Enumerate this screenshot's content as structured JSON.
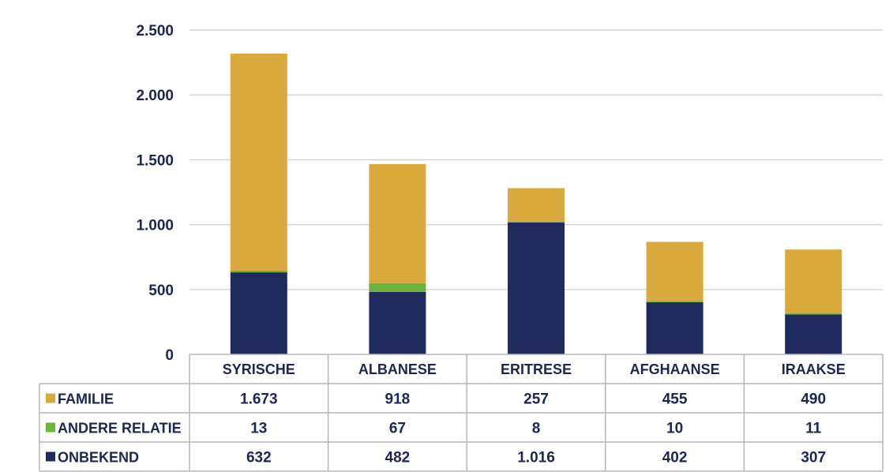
{
  "chart_data": {
    "type": "bar",
    "stacked": true,
    "categories": [
      "SYRISCHE",
      "ALBANESE",
      "ERITRESE",
      "AFGHAANSE",
      "IRAAKSE"
    ],
    "series": [
      {
        "name": "ONBEKEND",
        "values": [
          632,
          482,
          1016,
          402,
          307
        ],
        "labels": [
          "632",
          "482",
          "1.016",
          "402",
          "307"
        ],
        "color": "#1f2a5e"
      },
      {
        "name": "ANDERE RELATIE",
        "values": [
          13,
          67,
          8,
          10,
          11
        ],
        "labels": [
          "13",
          "67",
          "8",
          "10",
          "11"
        ],
        "color": "#6cb33e"
      },
      {
        "name": "FAMILIE",
        "values": [
          1673,
          918,
          257,
          455,
          490
        ],
        "labels": [
          "1.673",
          "918",
          "257",
          "455",
          "490"
        ],
        "color": "#d9a93c"
      }
    ],
    "table_order": [
      "FAMILIE",
      "ANDERE RELATIE",
      "ONBEKEND"
    ],
    "ylim": [
      0,
      2500
    ],
    "yticks": [
      0,
      500,
      1000,
      1500,
      2000,
      2500
    ],
    "ytick_labels": [
      "0",
      "500",
      "1.000",
      "1.500",
      "2.000",
      "2.500"
    ],
    "grid": true,
    "legend": "data-table"
  }
}
